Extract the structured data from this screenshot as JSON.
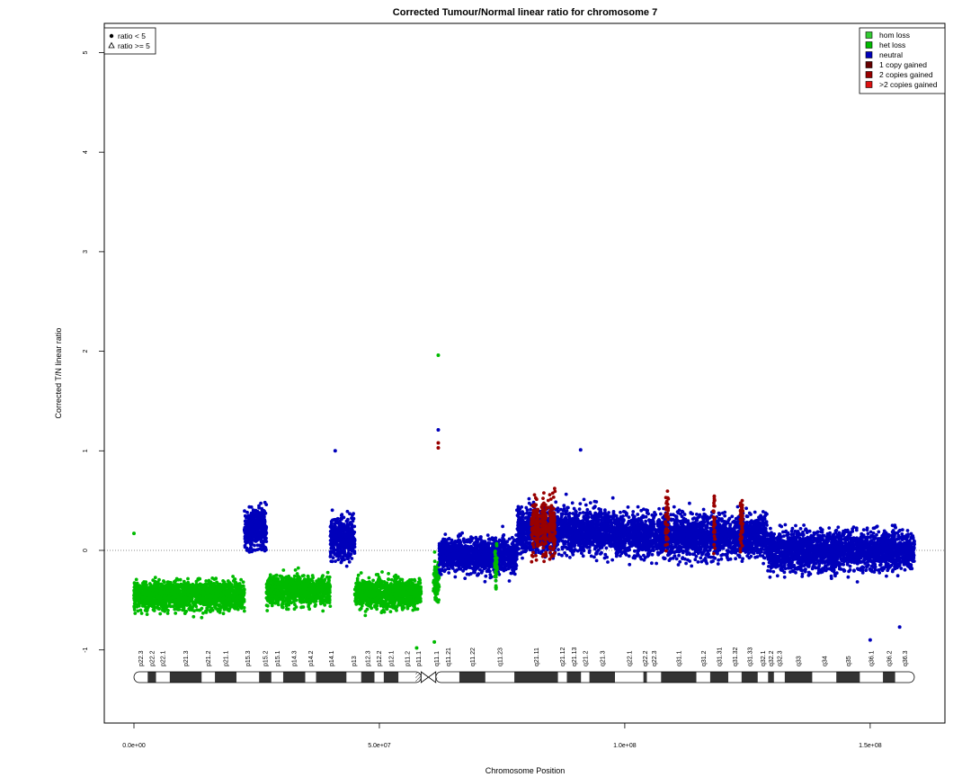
{
  "chart_data": {
    "type": "scatter",
    "title": "Corrected Tumour/Normal linear ratio for chromosome  7",
    "xlabel": "Chromosome Position",
    "ylabel": "Corrected T/N linear ratio",
    "xlim": [
      0,
      159000000
    ],
    "ylim": [
      -1.7,
      5.3
    ],
    "x_ticks": [
      {
        "value": 0,
        "label": "0.0e+00"
      },
      {
        "value": 50000000,
        "label": "5.0e+07"
      },
      {
        "value": 100000000,
        "label": "1.0e+08"
      },
      {
        "value": 150000000,
        "label": "1.5e+08"
      }
    ],
    "y_ticks": [
      -1,
      0,
      1,
      2,
      3,
      4,
      5
    ],
    "reference_line": 0,
    "shape_legend": {
      "placement": "top-left",
      "items": [
        {
          "symbol": "dot",
          "label": "ratio < 5"
        },
        {
          "symbol": "triangle",
          "label": "ratio >= 5"
        }
      ]
    },
    "legend": {
      "placement": "top-right",
      "items": [
        {
          "label": "hom loss",
          "color": "#33cc33"
        },
        {
          "label": "het loss",
          "color": "#00bb00"
        },
        {
          "label": "neutral",
          "color": "#0000bb"
        },
        {
          "label": "1 copy gained",
          "color": "#660000"
        },
        {
          "label": "2 copies gained",
          "color": "#990000"
        },
        {
          "label": ">2 copies gained",
          "color": "#dd1111"
        }
      ]
    },
    "series": [
      {
        "name": "het loss",
        "color": "#00bb00",
        "x_range": [
          0,
          22500000
        ],
        "median": -0.45,
        "spread": 0.1
      },
      {
        "name": "neutral",
        "color": "#0000bb",
        "x_range": [
          22500000,
          27000000
        ],
        "median": 0.22,
        "spread": 0.14
      },
      {
        "name": "het loss",
        "color": "#00bb00",
        "x_range": [
          27000000,
          40000000
        ],
        "median": -0.4,
        "spread": 0.1
      },
      {
        "name": "neutral",
        "color": "#0000bb",
        "x_range": [
          40000000,
          45000000
        ],
        "median": 0.12,
        "spread": 0.15
      },
      {
        "name": "het loss",
        "color": "#00bb00",
        "x_range": [
          45000000,
          58500000
        ],
        "median": -0.43,
        "spread": 0.1
      },
      {
        "name": "het loss",
        "color": "#00bb00",
        "x_range": [
          61000000,
          62200000
        ],
        "median": -0.3,
        "spread": 0.15
      },
      {
        "name": "neutral",
        "color": "#0000bb",
        "x_range": [
          62200000,
          78000000
        ],
        "median": -0.05,
        "spread": 0.12
      },
      {
        "name": "neutral",
        "color": "#0000bb",
        "x_range": [
          78000000,
          98000000
        ],
        "median": 0.2,
        "spread": 0.16
      },
      {
        "name": "neutral",
        "color": "#0000bb",
        "x_range": [
          98000000,
          129000000
        ],
        "median": 0.15,
        "spread": 0.15
      },
      {
        "name": "neutral",
        "color": "#0000bb",
        "x_range": [
          129000000,
          159000000
        ],
        "median": 0.0,
        "spread": 0.14
      },
      {
        "name": "het loss",
        "color": "#00bb00",
        "x_range": [
          73500000,
          74000000
        ],
        "median": -0.15,
        "spread": 0.15
      },
      {
        "name": "2 copies gained",
        "color": "#990000",
        "x_range": [
          81000000,
          82500000
        ],
        "median": 0.25,
        "spread": 0.2
      },
      {
        "name": "2 copies gained",
        "color": "#990000",
        "x_range": [
          82800000,
          84000000
        ],
        "median": 0.25,
        "spread": 0.2
      },
      {
        "name": "2 copies gained",
        "color": "#990000",
        "x_range": [
          84400000,
          85800000
        ],
        "median": 0.25,
        "spread": 0.2
      },
      {
        "name": "2 copies gained",
        "color": "#990000",
        "x_range": [
          108300000,
          108900000
        ],
        "median": 0.3,
        "spread": 0.2
      },
      {
        "name": "2 copies gained",
        "color": "#990000",
        "x_range": [
          118000000,
          118400000
        ],
        "median": 0.3,
        "spread": 0.2
      },
      {
        "name": "2 copies gained",
        "color": "#990000",
        "x_range": [
          123500000,
          124100000
        ],
        "median": 0.3,
        "spread": 0.2
      }
    ],
    "outliers": [
      {
        "x": 62000000,
        "y": 1.96,
        "color": "#00bb00"
      },
      {
        "x": 62000000,
        "y": 1.21,
        "color": "#0000bb"
      },
      {
        "x": 62000000,
        "y": 1.08,
        "color": "#990000"
      },
      {
        "x": 62000000,
        "y": 1.03,
        "color": "#990000"
      },
      {
        "x": 41000000,
        "y": 1.0,
        "color": "#0000bb"
      },
      {
        "x": 91000000,
        "y": 1.01,
        "color": "#0000bb"
      },
      {
        "x": 0,
        "y": 0.17,
        "color": "#00bb00"
      },
      {
        "x": 150000000,
        "y": -0.9,
        "color": "#0000bb"
      },
      {
        "x": 156000000,
        "y": -0.77,
        "color": "#0000bb"
      },
      {
        "x": 57600000,
        "y": -0.98,
        "color": "#00bb00"
      },
      {
        "x": 61200000,
        "y": -0.92,
        "color": "#00bb00"
      }
    ],
    "ideogram": {
      "centromere": [
        58500000,
        61500000
      ],
      "bands": [
        {
          "name": "p22.3",
          "start": 0,
          "end": 2800000,
          "stain": "gneg"
        },
        {
          "name": "p22.2",
          "start": 2800000,
          "end": 4500000,
          "stain": "gpos"
        },
        {
          "name": "p22.1",
          "start": 4500000,
          "end": 7300000,
          "stain": "gneg"
        },
        {
          "name": "p21.3",
          "start": 7300000,
          "end": 13800000,
          "stain": "gpos"
        },
        {
          "name": "p21.2",
          "start": 13800000,
          "end": 16500000,
          "stain": "gneg"
        },
        {
          "name": "p21.1",
          "start": 16500000,
          "end": 20900000,
          "stain": "gpos"
        },
        {
          "name": "p15.3",
          "start": 20900000,
          "end": 25500000,
          "stain": "gneg"
        },
        {
          "name": "p15.2",
          "start": 25500000,
          "end": 28000000,
          "stain": "gpos"
        },
        {
          "name": "p15.1",
          "start": 28000000,
          "end": 30400000,
          "stain": "gneg"
        },
        {
          "name": "p14.3",
          "start": 30400000,
          "end": 34900000,
          "stain": "gpos"
        },
        {
          "name": "p14.2",
          "start": 34900000,
          "end": 37100000,
          "stain": "gneg"
        },
        {
          "name": "p14.1",
          "start": 37100000,
          "end": 43300000,
          "stain": "gpos"
        },
        {
          "name": "p13",
          "start": 43300000,
          "end": 46300000,
          "stain": "gneg"
        },
        {
          "name": "p12.3",
          "start": 46300000,
          "end": 49000000,
          "stain": "gpos"
        },
        {
          "name": "p12.2",
          "start": 49000000,
          "end": 50900000,
          "stain": "gneg"
        },
        {
          "name": "p12.1",
          "start": 50900000,
          "end": 53900000,
          "stain": "gpos"
        },
        {
          "name": "p11.2",
          "start": 53900000,
          "end": 57400000,
          "stain": "gneg"
        },
        {
          "name": "p11.1",
          "start": 57400000,
          "end": 58500000,
          "stain": "gvar"
        },
        {
          "name": "q11.1",
          "start": 61500000,
          "end": 61800000,
          "stain": "gvar"
        },
        {
          "name": "q11.21",
          "start": 61800000,
          "end": 66300000,
          "stain": "gneg"
        },
        {
          "name": "q11.22",
          "start": 66300000,
          "end": 71600000,
          "stain": "gpos"
        },
        {
          "name": "q11.23",
          "start": 71600000,
          "end": 77500000,
          "stain": "gneg"
        },
        {
          "name": "q21.11",
          "start": 77500000,
          "end": 86400000,
          "stain": "gpos"
        },
        {
          "name": "q21.12",
          "start": 86400000,
          "end": 88200000,
          "stain": "gneg"
        },
        {
          "name": "q21.13",
          "start": 88200000,
          "end": 91100000,
          "stain": "gpos"
        },
        {
          "name": "q21.2",
          "start": 91100000,
          "end": 92800000,
          "stain": "gneg"
        },
        {
          "name": "q21.3",
          "start": 92800000,
          "end": 98000000,
          "stain": "gpos"
        },
        {
          "name": "q22.1",
          "start": 98000000,
          "end": 103800000,
          "stain": "gneg"
        },
        {
          "name": "q22.2",
          "start": 103800000,
          "end": 104500000,
          "stain": "gpos"
        },
        {
          "name": "q22.3",
          "start": 104500000,
          "end": 107400000,
          "stain": "gneg"
        },
        {
          "name": "q31.1",
          "start": 107400000,
          "end": 114600000,
          "stain": "gpos"
        },
        {
          "name": "q31.2",
          "start": 114600000,
          "end": 117400000,
          "stain": "gneg"
        },
        {
          "name": "q31.31",
          "start": 117400000,
          "end": 121100000,
          "stain": "gpos"
        },
        {
          "name": "q31.32",
          "start": 121100000,
          "end": 123800000,
          "stain": "gneg"
        },
        {
          "name": "q31.33",
          "start": 123800000,
          "end": 127100000,
          "stain": "gpos"
        },
        {
          "name": "q32.1",
          "start": 127100000,
          "end": 129200000,
          "stain": "gneg"
        },
        {
          "name": "q32.2",
          "start": 129200000,
          "end": 130400000,
          "stain": "gpos"
        },
        {
          "name": "q32.3",
          "start": 130400000,
          "end": 132600000,
          "stain": "gneg"
        },
        {
          "name": "q33",
          "start": 132600000,
          "end": 138200000,
          "stain": "gpos"
        },
        {
          "name": "q34",
          "start": 138200000,
          "end": 143100000,
          "stain": "gneg"
        },
        {
          "name": "q35",
          "start": 143100000,
          "end": 147900000,
          "stain": "gpos"
        },
        {
          "name": "q36.1",
          "start": 147900000,
          "end": 152600000,
          "stain": "gneg"
        },
        {
          "name": "q36.2",
          "start": 152600000,
          "end": 155100000,
          "stain": "gpos"
        },
        {
          "name": "q36.3",
          "start": 155100000,
          "end": 159000000,
          "stain": "gneg"
        }
      ]
    }
  }
}
